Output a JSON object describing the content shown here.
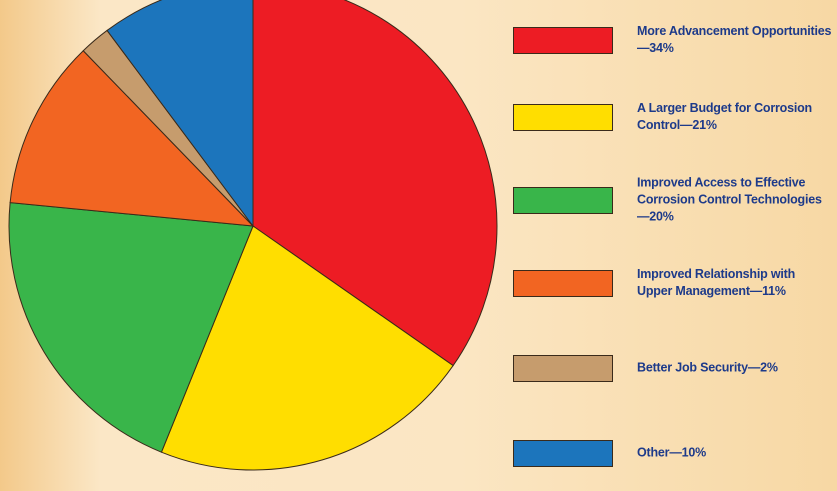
{
  "chart_data": {
    "type": "pie",
    "categories": [
      "More Advancement Opportunities—34%",
      "A Larger Budget for Corrosion Control—21%",
      "Improved Access to Effective Corrosion Control Technologies—20%",
      "Improved Relationship with Upper Management—11%",
      "Better Job Security—2%",
      "Other—10%"
    ],
    "values": [
      34,
      21,
      20,
      11,
      2,
      10
    ],
    "colors": [
      "#ed1c24",
      "#ffde00",
      "#39b54a",
      "#f26522",
      "#c69c6d",
      "#1c75bc"
    ]
  }
}
